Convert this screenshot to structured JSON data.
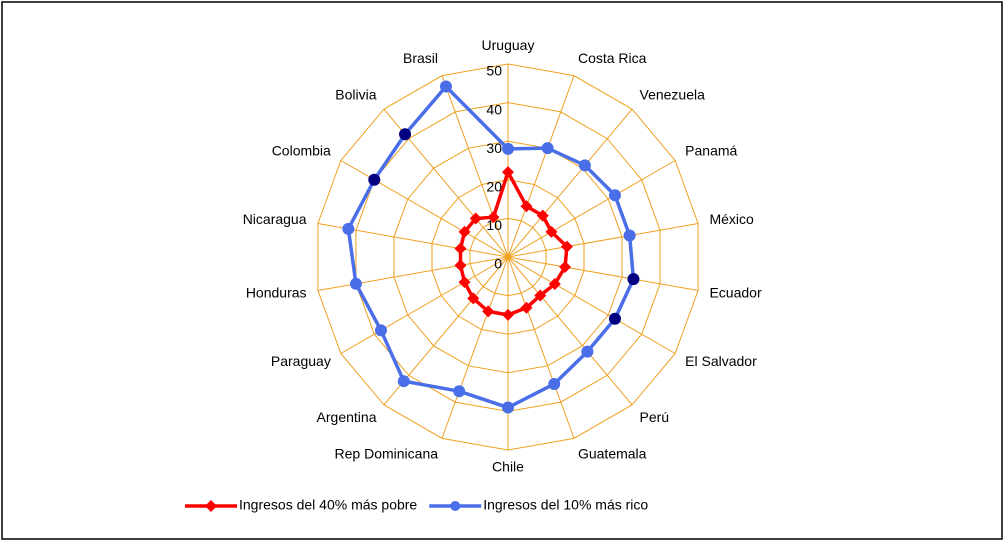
{
  "chart_data": {
    "type": "radar",
    "categories": [
      "Uruguay",
      "Costa Rica",
      "Venezuela",
      "Panamá",
      "México",
      "Ecuador",
      "El Salvador",
      "Perú",
      "Guatemala",
      "Chile",
      "Rep Dominicana",
      "Argentina",
      "Paraguay",
      "Honduras",
      "Nicaragua",
      "Colombia",
      "Bolivia",
      "Brasil"
    ],
    "series": [
      {
        "name": "Ingresos del 40% más pobre",
        "color": "#ff0000",
        "values": [
          22,
          14,
          14,
          13,
          15.5,
          15,
          14,
          13,
          14,
          15,
          15,
          14,
          13,
          12.5,
          12.5,
          13,
          13,
          11
        ]
      },
      {
        "name": "Ingresos del 10% más rico",
        "color": "#4a6ee8",
        "values": [
          28,
          30,
          31,
          32,
          32,
          33,
          32,
          32,
          35,
          39,
          37,
          42,
          38,
          40,
          42,
          40,
          41.5,
          47
        ],
        "point_colors": [
          "#4a6ee8",
          "#4a6ee8",
          "#4a6ee8",
          "#4a6ee8",
          "#4a6ee8",
          "#000080",
          "#000080",
          "#4a6ee8",
          "#4a6ee8",
          "#4a6ee8",
          "#4a6ee8",
          "#4a6ee8",
          "#4a6ee8",
          "#4a6ee8",
          "#4a6ee8",
          "#000080",
          "#000080",
          "#4a6ee8"
        ]
      }
    ],
    "ylim": [
      0,
      50
    ],
    "yticks": [
      0,
      10,
      20,
      30,
      40,
      50
    ],
    "grid": true,
    "grid_color": "#f0a020",
    "legend": "bottom"
  }
}
